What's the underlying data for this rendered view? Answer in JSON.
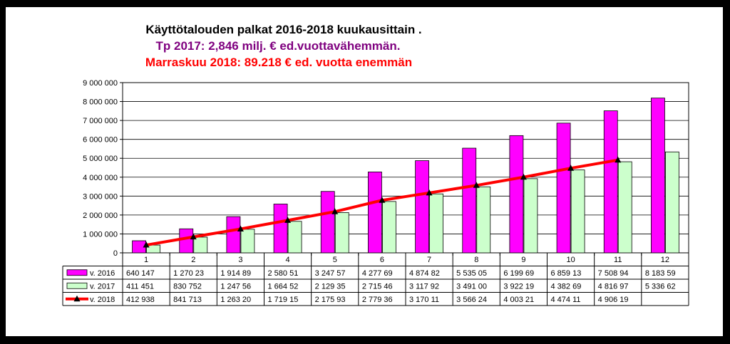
{
  "chart_data": {
    "type": "bar",
    "title": "Käyttötalouden palkat 2016-2018 kuukausittain .",
    "subtitle_1": "Tp 2017: 2,846 milj. € ed.vuottavähemmän.",
    "subtitle_2": "Marraskuu 2018: 89.218 € ed. vuotta enemmän",
    "colors": {
      "subtitle_1": "#7f007f",
      "subtitle_2": "#ff0000",
      "series_2016": "#ff00ff",
      "series_2017": "#ccffcc",
      "series_2018": "#ff0000"
    },
    "categories": [
      "1",
      "2",
      "3",
      "4",
      "5",
      "6",
      "7",
      "8",
      "9",
      "10",
      "11",
      "12"
    ],
    "y_ticks": [
      "0",
      "1 000 000",
      "2 000 000",
      "3 000 000",
      "4 000 000",
      "5 000 000",
      "6 000 000",
      "7 000 000",
      "8 000 000",
      "9 000 000"
    ],
    "ylim": [
      0,
      9000000
    ],
    "grid": true,
    "series": [
      {
        "name": "v. 2016",
        "kind": "bar",
        "values": [
          640147,
          1270230,
          1914890,
          2580510,
          3247570,
          4277690,
          4874820,
          5535050,
          6199690,
          6859130,
          7508940,
          8183590
        ],
        "labels": [
          "640 147",
          "1 270 23",
          "1 914 89",
          "2 580 51",
          "3 247 57",
          "4 277 69",
          "4 874 82",
          "5 535 05",
          "6 199 69",
          "6 859 13",
          "7 508 94",
          "8 183 59"
        ]
      },
      {
        "name": "v. 2017",
        "kind": "bar",
        "values": [
          411451,
          830752,
          1247560,
          1664520,
          2129350,
          2715460,
          3117920,
          3491000,
          3922190,
          4382690,
          4816970,
          5336620
        ],
        "labels": [
          "411 451",
          "830 752",
          "1 247 56",
          "1 664 52",
          "2 129 35",
          "2 715 46",
          "3 117 92",
          "3 491 00",
          "3 922 19",
          "4 382 69",
          "4 816 97",
          "5 336 62"
        ]
      },
      {
        "name": "v. 2018",
        "kind": "line",
        "values": [
          412938,
          841713,
          1263200,
          1719150,
          2175930,
          2779360,
          3170110,
          3566240,
          4003210,
          4474110,
          4906190,
          null
        ],
        "labels": [
          "412 938",
          "841 713",
          "1 263 20",
          "1 719 15",
          "2 175 93",
          "2 779 36",
          "3 170 11",
          "3 566 24",
          "4 003 21",
          "4 474 11",
          "4 906 19",
          ""
        ]
      }
    ]
  }
}
